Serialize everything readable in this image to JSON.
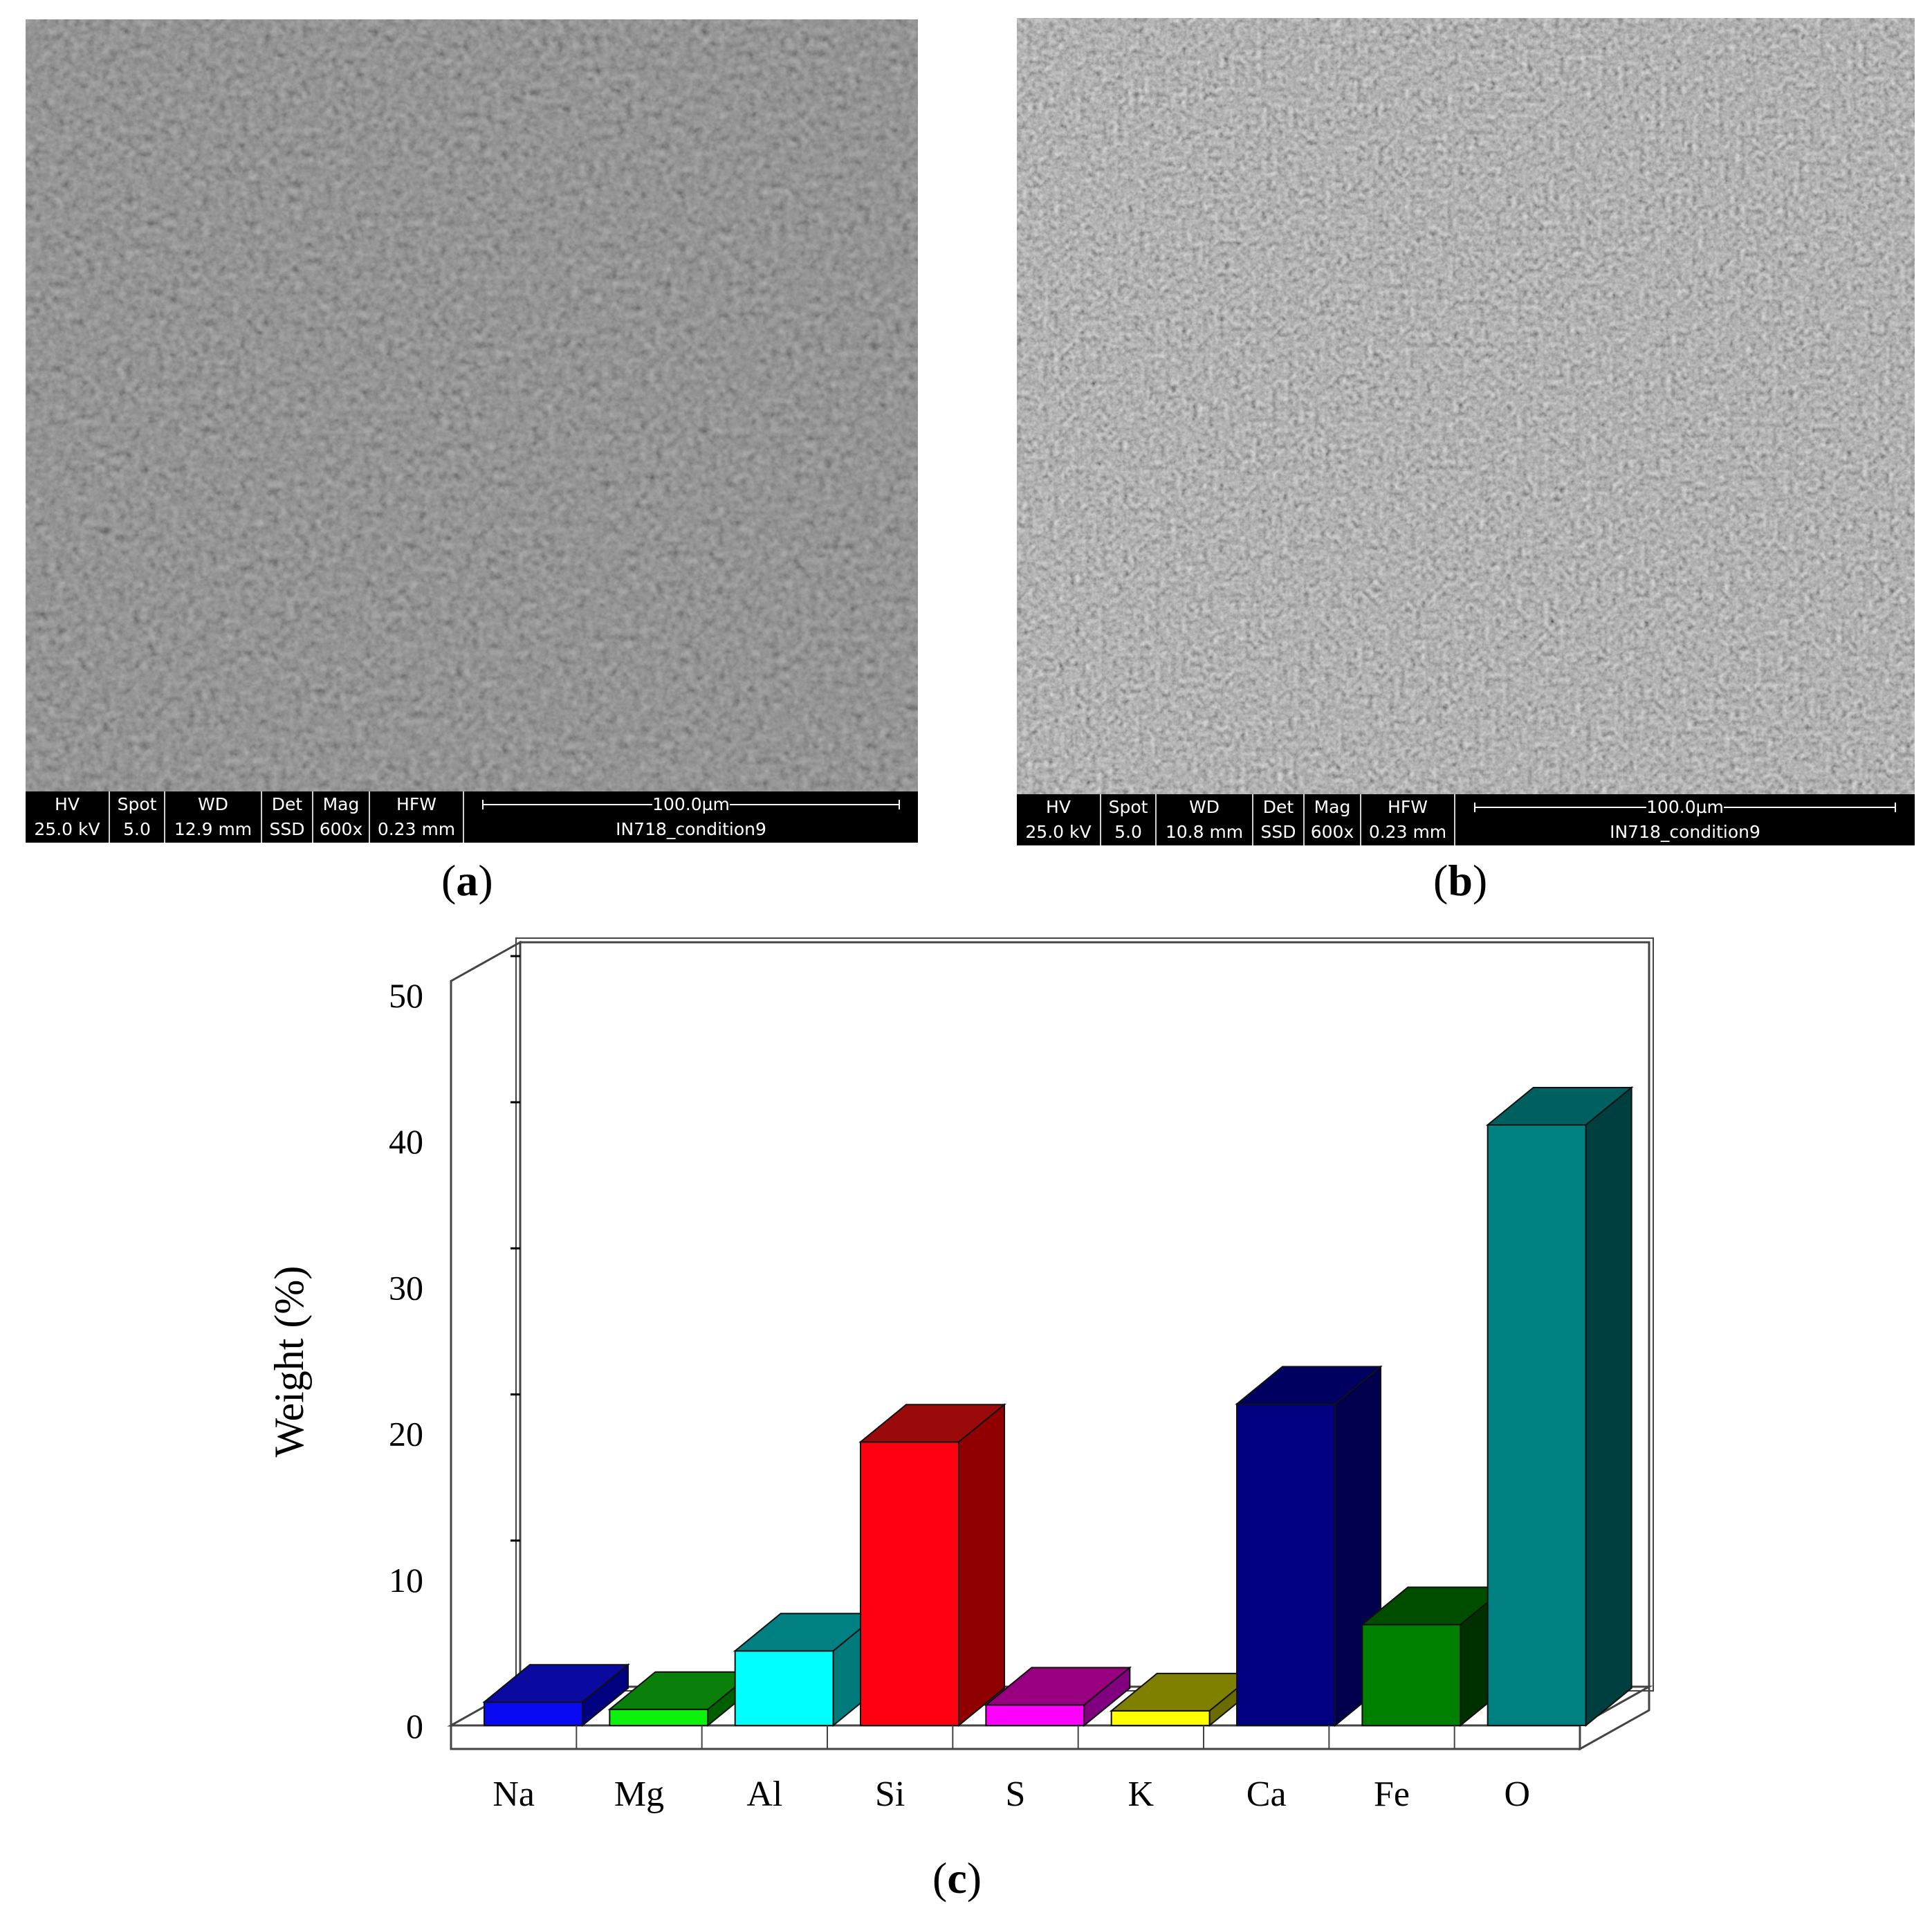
{
  "panels": {
    "a": {
      "label_open": "(",
      "label_letter": "a",
      "label_close": ")",
      "databar": {
        "headers": [
          "HV",
          "Spot",
          "WD",
          "Det",
          "Mag",
          "HFW"
        ],
        "values": [
          "25.0 kV",
          "5.0",
          "12.9 mm",
          "SSD",
          "600x",
          "0.23 mm"
        ],
        "scale_label": "100.0µm",
        "sample_name": "IN718_condition9"
      }
    },
    "b": {
      "label_open": "(",
      "label_letter": "b",
      "label_close": ")",
      "databar": {
        "headers": [
          "HV",
          "Spot",
          "WD",
          "Det",
          "Mag",
          "HFW"
        ],
        "values": [
          "25.0 kV",
          "5.0",
          "10.8 mm",
          "SSD",
          "600x",
          "0.23 mm"
        ],
        "scale_label": "100.0µm",
        "sample_name": "IN718_condition9"
      }
    },
    "c": {
      "label_open": "(",
      "label_letter": "c",
      "label_close": ")"
    }
  },
  "chart_data": {
    "type": "bar",
    "style": "3d",
    "categories": [
      "Na",
      "Mg",
      "Al",
      "Si",
      "S",
      "K",
      "Ca",
      "Fe",
      "O"
    ],
    "values": [
      1.6,
      1.1,
      5.1,
      19.4,
      1.4,
      1.0,
      22.0,
      6.9,
      41.1
    ],
    "ylabel": "Weight (%)",
    "xlabel": "",
    "ylim": [
      0,
      50
    ],
    "yticks": [
      0,
      10,
      20,
      30,
      40,
      50
    ],
    "grid": false,
    "colors": {
      "front": [
        "#0a0af2",
        "#0cf20c",
        "#00ffff",
        "#ff0010",
        "#ff00ff",
        "#ffff00",
        "#000080",
        "#008000",
        "#008080"
      ],
      "top": [
        "#0a0aa0",
        "#0a7f0a",
        "#008080",
        "#9a0a0a",
        "#990080",
        "#808000",
        "#000060",
        "#004d00",
        "#006060"
      ],
      "side": [
        "#000080",
        "#006000",
        "#007a7a",
        "#900000",
        "#800080",
        "#6b6b00",
        "#00004d",
        "#003000",
        "#003f3f"
      ]
    }
  }
}
